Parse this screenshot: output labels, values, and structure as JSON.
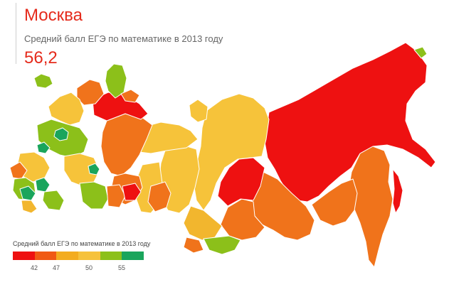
{
  "region": {
    "name": "Москва",
    "metric_label": "Средний балл ЕГЭ по математике в 2013 году",
    "value": "56,2"
  },
  "legend": {
    "title": "Средний балл ЕГЭ по математике в 2013 году",
    "colors": [
      "#ee1111",
      "#f05a14",
      "#f3ac1f",
      "#f6c23c",
      "#8cc01a",
      "#1aa55c"
    ],
    "ticks": [
      "42",
      "47",
      "50",
      "55"
    ]
  },
  "palette": {
    "red": "#ee1111",
    "orange": "#f0731b",
    "yellow": "#f6c33a",
    "yellow_light": "#f2b62e",
    "green": "#8cc01a",
    "dark_green": "#1aa55c",
    "border": "#ffffff"
  }
}
